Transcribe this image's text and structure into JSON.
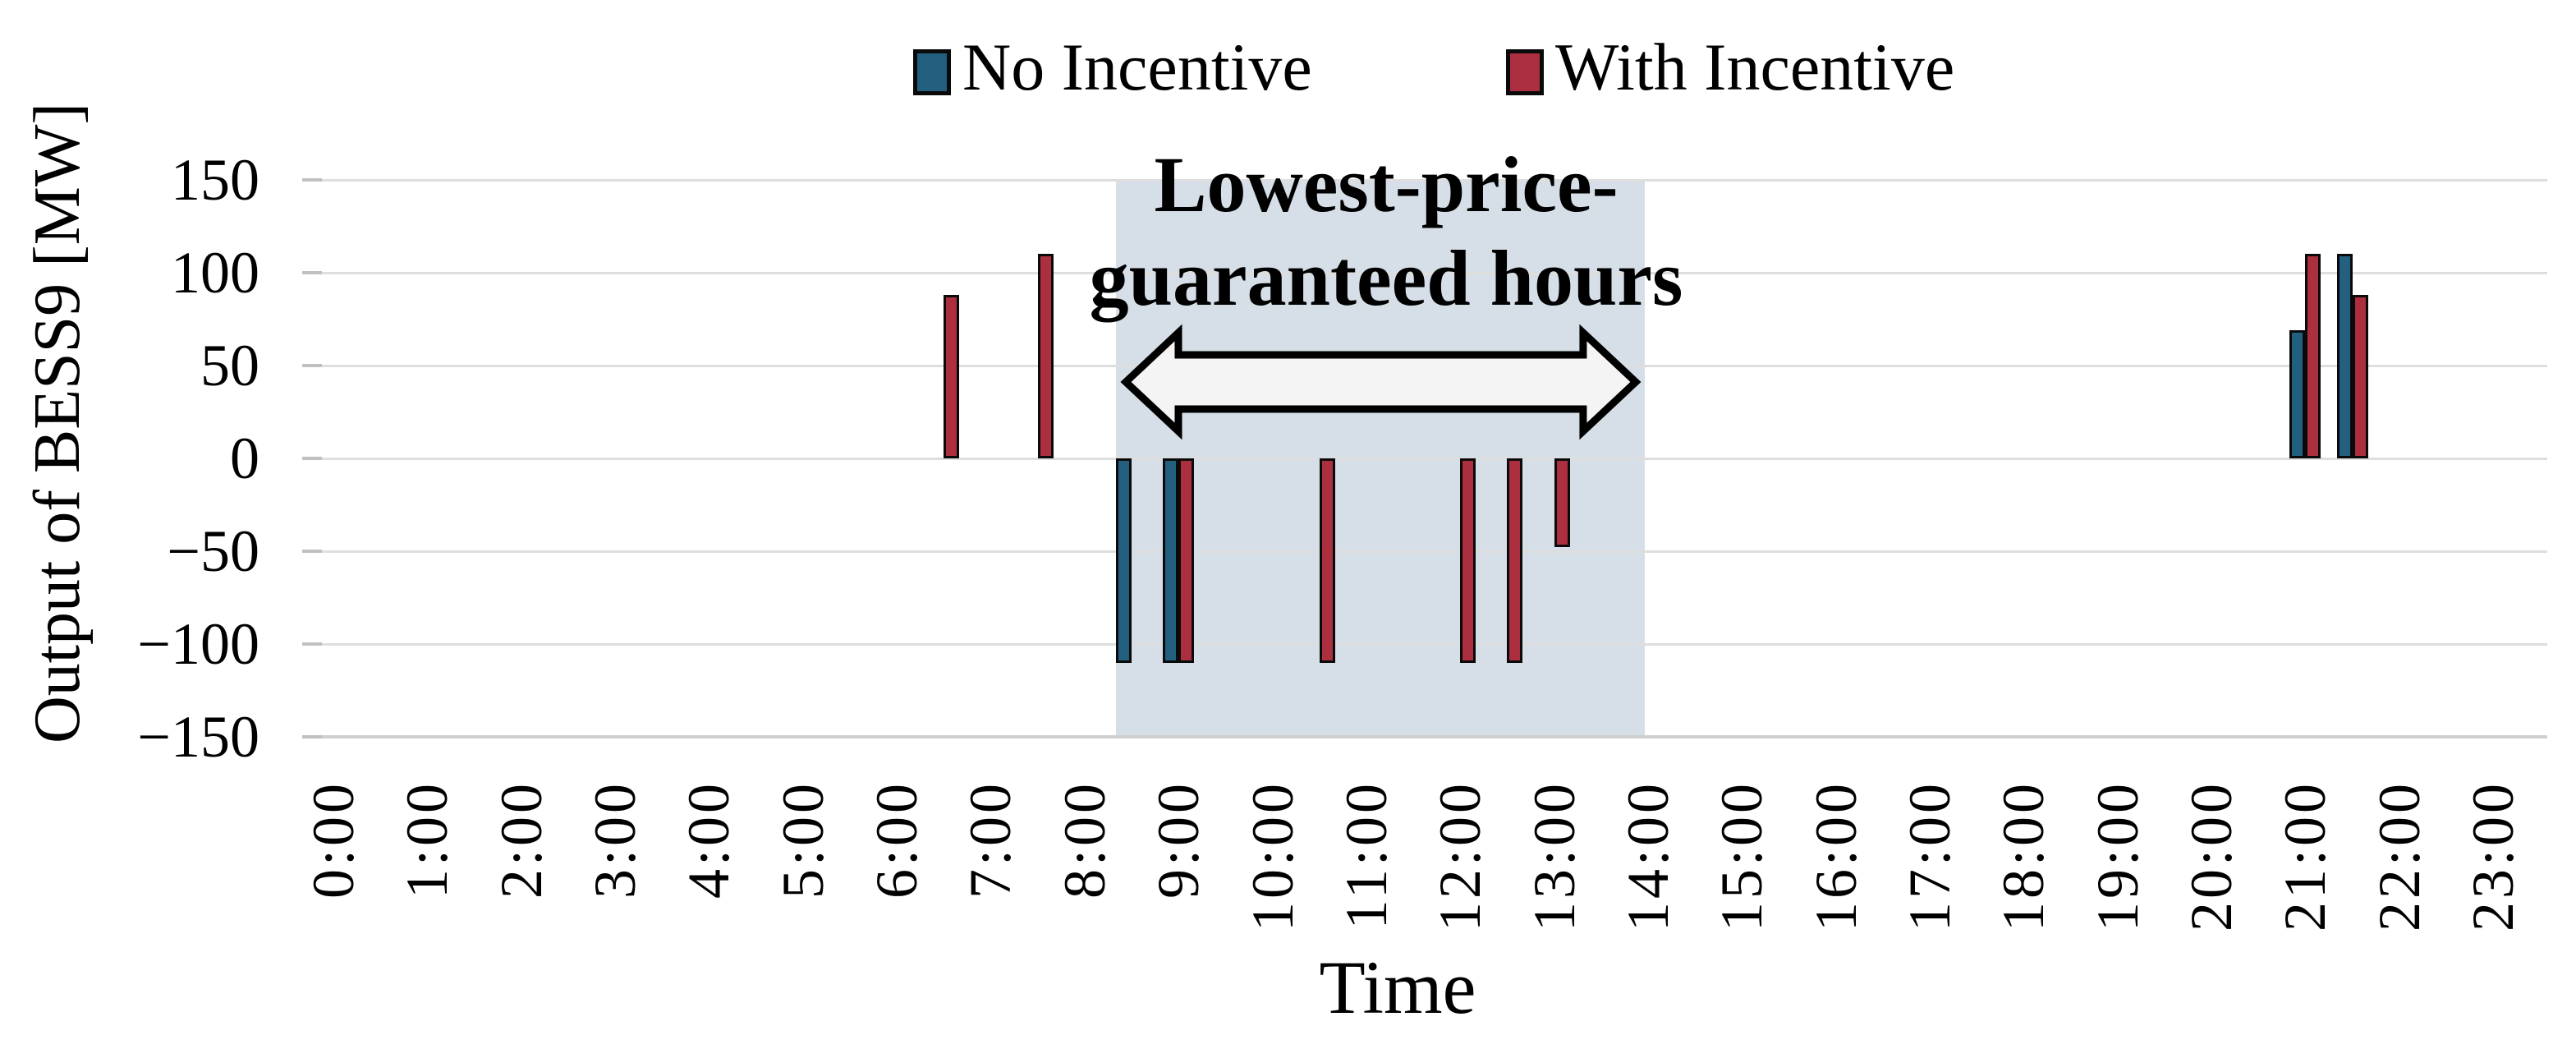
{
  "chart_data": {
    "type": "bar",
    "title": "",
    "ylabel": "Output of BESS9 [MW]",
    "xlabel": "Time",
    "ylim": [
      -150,
      150
    ],
    "yticks": [
      {
        "value": 150,
        "label": "150"
      },
      {
        "value": 100,
        "label": "100"
      },
      {
        "value": 50,
        "label": "50"
      },
      {
        "value": 0,
        "label": "0"
      },
      {
        "value": -50,
        "label": "−50"
      },
      {
        "value": -100,
        "label": "−100"
      },
      {
        "value": -150,
        "label": "−150"
      }
    ],
    "x_categories": [
      "0:00",
      "1:00",
      "2:00",
      "3:00",
      "4:00",
      "5:00",
      "6:00",
      "7:00",
      "8:00",
      "9:00",
      "10:00",
      "11:00",
      "12:00",
      "13:00",
      "14:00",
      "15:00",
      "16:00",
      "17:00",
      "18:00",
      "19:00",
      "20:00",
      "21:00",
      "22:00",
      "23:00"
    ],
    "bar_interval_minutes": 30,
    "grid": "horizontal",
    "legend_position": "top",
    "series": [
      {
        "name": "No Incentive",
        "color": "#235F7F",
        "unit": "MW",
        "points": [
          {
            "time": "8:30",
            "hour": 8.5,
            "value": -110
          },
          {
            "time": "9:00",
            "hour": 9.0,
            "value": -110
          },
          {
            "time": "21:00",
            "hour": 21.0,
            "value": 69
          },
          {
            "time": "21:30",
            "hour": 21.5,
            "value": 110
          }
        ]
      },
      {
        "name": "With Incentive",
        "color": "#AC2F40",
        "unit": "MW",
        "points": [
          {
            "time": "6:30",
            "hour": 6.5,
            "value": 88
          },
          {
            "time": "7:30",
            "hour": 7.5,
            "value": 110
          },
          {
            "time": "9:00",
            "hour": 9.0,
            "value": -110
          },
          {
            "time": "10:30",
            "hour": 10.5,
            "value": -110
          },
          {
            "time": "12:00",
            "hour": 12.0,
            "value": -110
          },
          {
            "time": "12:30",
            "hour": 12.5,
            "value": -110
          },
          {
            "time": "13:00",
            "hour": 13.0,
            "value": -48
          },
          {
            "time": "21:00",
            "hour": 21.0,
            "value": 110
          },
          {
            "time": "21:30",
            "hour": 21.5,
            "value": 88
          }
        ]
      }
    ],
    "highlight_band": {
      "label_line1": "Lowest-price-",
      "label_line2": "guaranteed hours",
      "from_hour": 8.33,
      "to_hour": 13.97,
      "color": "#D6DFE7",
      "arrow": "double-headed",
      "arrow_fill": "#f4f4f4"
    }
  },
  "legend": {
    "items": [
      {
        "label": "No Incentive",
        "color": "#235F7F"
      },
      {
        "label": "With Incentive",
        "color": "#AC2F40"
      }
    ]
  },
  "annotation": {
    "line1": "Lowest-price-",
    "line2": "guaranteed hours"
  },
  "axes": {
    "y_title": "Output of BESS9 [MW]",
    "x_title": "Time"
  }
}
